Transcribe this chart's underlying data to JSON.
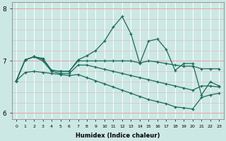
{
  "xlabel": "Humidex (Indice chaleur)",
  "bg_color": "#cce8e4",
  "hgrid_color": "#e8a0a0",
  "vgrid_color": "#ffffff",
  "line_color": "#1a6b5a",
  "xlim": [
    -0.5,
    23.5
  ],
  "ylim": [
    5.88,
    8.12
  ],
  "yticks": [
    6,
    7,
    8
  ],
  "xticks": [
    0,
    1,
    2,
    3,
    4,
    5,
    6,
    7,
    8,
    9,
    10,
    11,
    12,
    13,
    14,
    15,
    16,
    17,
    18,
    19,
    20,
    21,
    22,
    23
  ],
  "lines": [
    [
      6.62,
      7.02,
      7.08,
      7.05,
      6.82,
      6.8,
      6.8,
      7.02,
      7.1,
      7.2,
      7.38,
      7.65,
      7.85,
      7.52,
      6.95,
      7.38,
      7.42,
      7.22,
      6.82,
      6.95,
      6.95,
      6.35,
      6.6,
      6.52
    ],
    [
      6.62,
      7.02,
      7.08,
      7.03,
      6.82,
      6.8,
      6.8,
      7.0,
      7.0,
      7.0,
      7.0,
      7.0,
      7.0,
      7.0,
      6.96,
      7.0,
      6.98,
      6.95,
      6.92,
      6.9,
      6.9,
      6.85,
      6.85,
      6.85
    ],
    [
      6.62,
      7.02,
      7.08,
      7.0,
      6.8,
      6.76,
      6.76,
      6.92,
      6.92,
      6.88,
      6.84,
      6.8,
      6.76,
      6.72,
      6.68,
      6.64,
      6.6,
      6.56,
      6.52,
      6.48,
      6.44,
      6.52,
      6.52,
      6.5
    ],
    [
      6.62,
      6.78,
      6.8,
      6.78,
      6.76,
      6.74,
      6.72,
      6.74,
      6.68,
      6.62,
      6.56,
      6.5,
      6.44,
      6.38,
      6.32,
      6.26,
      6.22,
      6.18,
      6.12,
      6.1,
      6.08,
      6.3,
      6.35,
      6.38
    ]
  ]
}
